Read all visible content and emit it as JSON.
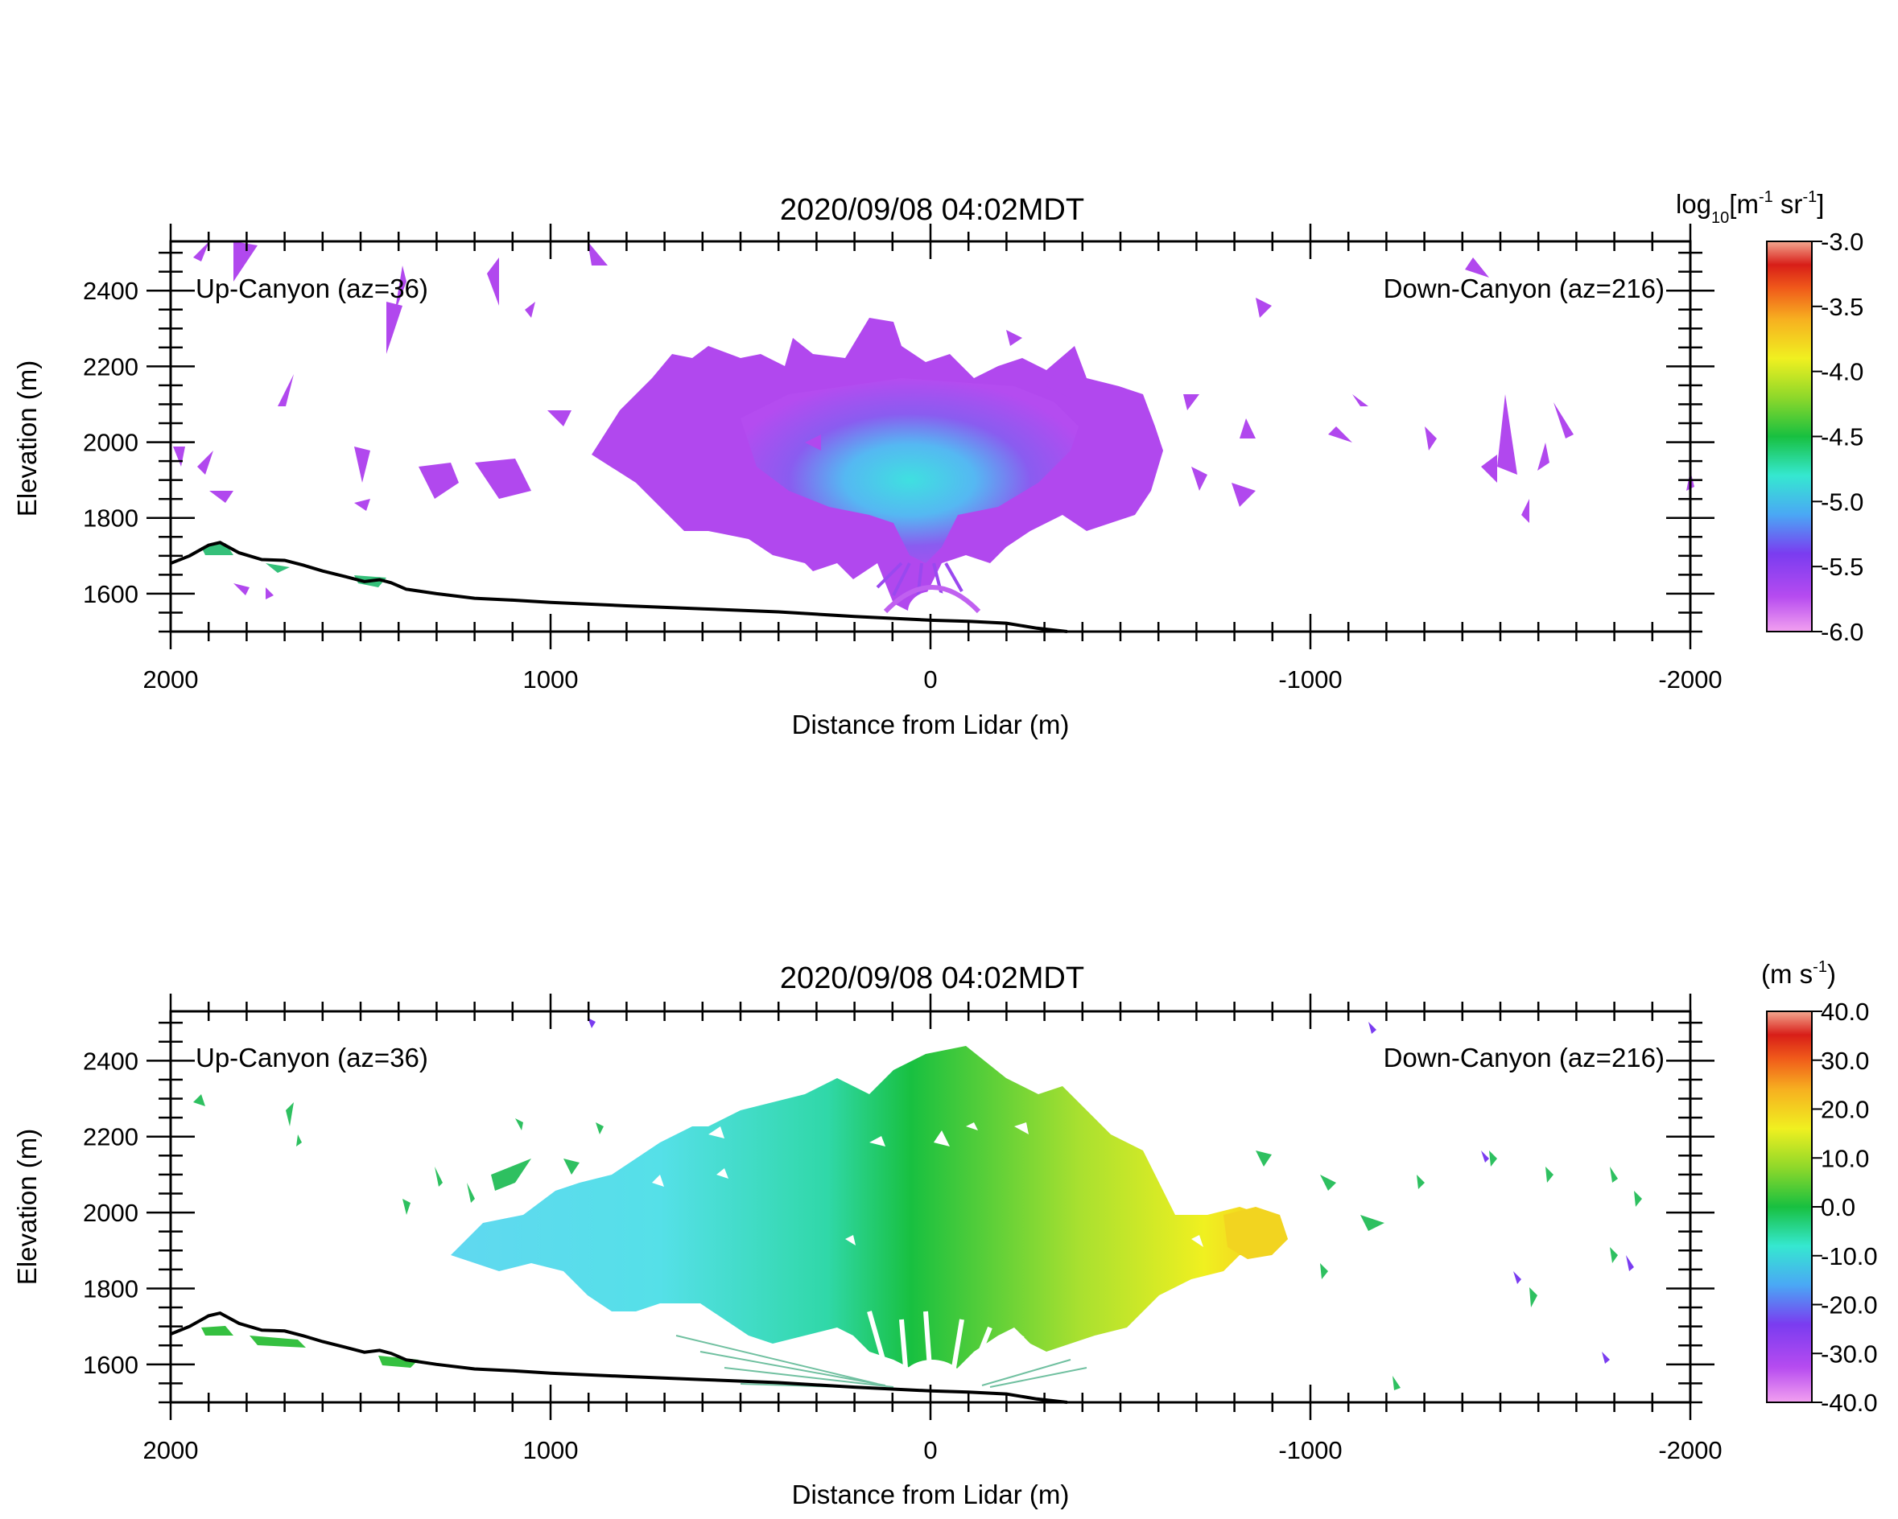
{
  "chart_data": [
    {
      "type": "heatmap",
      "title": "2020/09/08 04:02MDT",
      "xlabel": "Distance from Lidar (m)",
      "ylabel": "Elevation (m)",
      "xlim": [
        2000,
        -2000
      ],
      "ylim": [
        1500,
        2530
      ],
      "x_ticks": [
        "2000",
        "1000",
        "0",
        "-1000",
        "-2000"
      ],
      "y_ticks": [
        "1600",
        "1800",
        "2000",
        "2200",
        "2400"
      ],
      "annotations": {
        "left": "Up-Canyon (az=36)",
        "right": "Down-Canyon (az=216)"
      },
      "colorbar": {
        "label_main": "log",
        "label_sub": "10",
        "label_rest": "[m",
        "label_exp1": "-1",
        "label_mid": " sr",
        "label_exp2": "-1",
        "label_end": "]",
        "range": [
          -6.0,
          -3.0
        ],
        "ticks": [
          "-3.0",
          "-3.5",
          "-4.0",
          "-4.5",
          "-5.0",
          "-5.5",
          "-6.0"
        ],
        "colors": [
          "#f2a0f0",
          "#b64bf0",
          "#7a3cf0",
          "#4aa8f5",
          "#35e8d0",
          "#18c040",
          "#8ed82a",
          "#f0f020",
          "#f7b020",
          "#f05a1a",
          "#d81e18",
          "#f3a890"
        ]
      },
      "grid": false,
      "values_summary": [
        {
          "x_range": [
            -600,
            900
          ],
          "y_range": [
            1700,
            2180
          ],
          "value": -5.8
        },
        {
          "x_range": [
            -300,
            400
          ],
          "y_range": [
            1820,
            2060
          ],
          "value": -5.1
        }
      ]
    },
    {
      "type": "heatmap",
      "title": "2020/09/08 04:02MDT",
      "xlabel": "Distance from Lidar (m)",
      "ylabel": "Elevation (m)",
      "xlim": [
        2000,
        -2000
      ],
      "ylim": [
        1500,
        2530
      ],
      "x_ticks": [
        "2000",
        "1000",
        "0",
        "-1000",
        "-2000"
      ],
      "y_ticks": [
        "1600",
        "1800",
        "2000",
        "2200",
        "2400"
      ],
      "annotations": {
        "left": "Up-Canyon (az=36)",
        "right": "Down-Canyon (az=216)"
      },
      "colorbar": {
        "label_main": "(m s",
        "label_exp": "-1",
        "label_end": ")",
        "range": [
          -40.0,
          40.0
        ],
        "ticks": [
          "40.0",
          "30.0",
          "20.0",
          "10.0",
          "0.0",
          "-10.0",
          "-20.0",
          "-30.0",
          "-40.0"
        ],
        "colors": [
          "#f2a0f0",
          "#b64bf0",
          "#7a3cf0",
          "#4aa8f5",
          "#35e8d0",
          "#18c040",
          "#8ed82a",
          "#f0f020",
          "#f7b020",
          "#f05a1a",
          "#d81e18",
          "#f3a890"
        ]
      },
      "grid": false,
      "values_summary": [
        {
          "x_range": [
            300,
            900
          ],
          "y_range": [
            1700,
            2200
          ],
          "value": -15
        },
        {
          "x_range": [
            -100,
            300
          ],
          "y_range": [
            1600,
            2250
          ],
          "value": 0
        },
        {
          "x_range": [
            -600,
            -100
          ],
          "y_range": [
            1700,
            2150
          ],
          "value": 8
        }
      ]
    }
  ],
  "terrain": {
    "x": [
      2000,
      1950,
      1900,
      1870,
      1820,
      1760,
      1700,
      1650,
      1600,
      1540,
      1490,
      1450,
      1420,
      1380,
      1300,
      1200,
      1100,
      1000,
      800,
      600,
      400,
      200,
      0,
      -100,
      -200,
      -280,
      -360
    ],
    "y": [
      1680,
      1700,
      1728,
      1735,
      1708,
      1690,
      1688,
      1675,
      1660,
      1645,
      1632,
      1637,
      1629,
      1612,
      1600,
      1588,
      1583,
      1577,
      1568,
      1560,
      1552,
      1540,
      1530,
      1527,
      1522,
      1509,
      1500
    ]
  }
}
